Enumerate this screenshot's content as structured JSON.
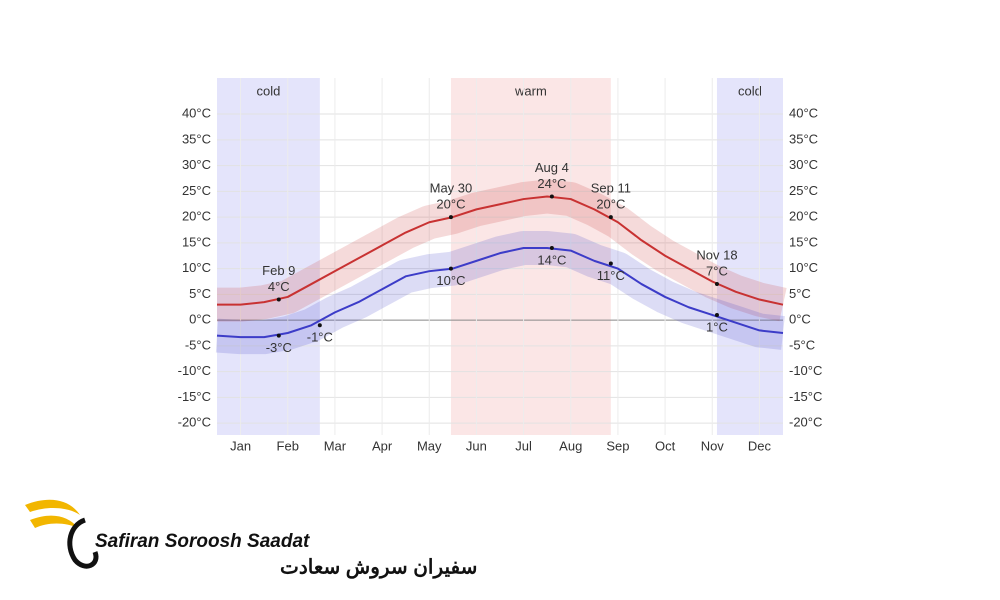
{
  "chart_data": {
    "type": "line",
    "x": [
      0,
      0.5,
      1,
      1.5,
      2,
      2.5,
      3,
      3.5,
      4,
      4.5,
      5,
      5.5,
      6,
      6.5,
      7,
      7.5,
      8,
      8.5,
      9,
      9.5,
      10,
      10.5,
      11,
      11.5,
      12
    ],
    "xlim": [
      0,
      12
    ],
    "xticks": [
      {
        "value": 0.5,
        "label": "Jan"
      },
      {
        "value": 1.5,
        "label": "Feb"
      },
      {
        "value": 2.5,
        "label": "Mar"
      },
      {
        "value": 3.5,
        "label": "Apr"
      },
      {
        "value": 4.5,
        "label": "May"
      },
      {
        "value": 5.5,
        "label": "Jun"
      },
      {
        "value": 6.5,
        "label": "Jul"
      },
      {
        "value": 7.5,
        "label": "Aug"
      },
      {
        "value": 8.5,
        "label": "Sep"
      },
      {
        "value": 9.5,
        "label": "Oct"
      },
      {
        "value": 10.5,
        "label": "Nov"
      },
      {
        "value": 11.5,
        "label": "Dec"
      }
    ],
    "ylim": [
      -22.3,
      47
    ],
    "yticks": [
      {
        "value": 40,
        "label": "40°C"
      },
      {
        "value": 35,
        "label": "35°C"
      },
      {
        "value": 30,
        "label": "30°C"
      },
      {
        "value": 25,
        "label": "25°C"
      },
      {
        "value": 20,
        "label": "20°C"
      },
      {
        "value": 15,
        "label": "15°C"
      },
      {
        "value": 10,
        "label": "10°C"
      },
      {
        "value": 5,
        "label": "5°C"
      },
      {
        "value": 0,
        "label": "0°C"
      },
      {
        "value": -5,
        "label": "-5°C"
      },
      {
        "value": -10,
        "label": "-10°C"
      },
      {
        "value": -15,
        "label": "-15°C"
      },
      {
        "value": -20,
        "label": "-20°C"
      }
    ],
    "grid": true,
    "series": [
      {
        "color": "#c83232",
        "values": [
          3,
          3,
          3.5,
          4.5,
          7,
          9.5,
          12,
          14.5,
          17,
          19,
          20,
          21.5,
          22.5,
          23.5,
          24,
          23.5,
          21.5,
          19,
          15.5,
          12.5,
          10,
          7.5,
          5.5,
          4,
          3
        ]
      },
      {
        "color": "#3c3cc8",
        "values": [
          -3,
          -3.3,
          -3.3,
          -2.5,
          -1,
          1.5,
          3.5,
          6,
          8.5,
          9.5,
          10,
          11.5,
          13,
          14,
          14,
          13.5,
          11.5,
          10,
          7,
          4.5,
          2.5,
          1,
          -0.5,
          -2,
          -2.5
        ]
      }
    ],
    "bands": [
      {
        "label": "cold",
        "from": 0,
        "to": 2.18,
        "color": "#e4e4fb"
      },
      {
        "label": "warm",
        "from": 4.96,
        "to": 8.35,
        "color": "#fbe6e6"
      },
      {
        "label": "cold",
        "from": 10.6,
        "to": 12,
        "color": "#e4e4fb"
      }
    ],
    "annotations": [
      {
        "date": "Feb 9",
        "x": 1.31,
        "value": 4,
        "label": "4°C",
        "position": "above"
      },
      {
        "x": 1.31,
        "value": -3,
        "label": "-3°C",
        "position": "below"
      },
      {
        "x": 2.18,
        "value": -1,
        "label": "-1°C",
        "position": "below"
      },
      {
        "date": "May 30",
        "x": 4.96,
        "value": 20,
        "label": "20°C",
        "position": "above"
      },
      {
        "x": 4.96,
        "value": 10,
        "label": "10°C",
        "position": "below"
      },
      {
        "date": "Aug 4",
        "x": 7.1,
        "value": 24,
        "label": "24°C",
        "position": "above"
      },
      {
        "x": 7.1,
        "value": 14,
        "label": "14°C",
        "position": "below"
      },
      {
        "date": "Sep 11",
        "x": 8.35,
        "value": 20,
        "label": "20°C",
        "position": "above"
      },
      {
        "x": 8.35,
        "value": 11,
        "label": "11°C",
        "position": "below"
      },
      {
        "date": "Nov 18",
        "x": 10.6,
        "value": 7,
        "label": "7°C",
        "position": "above"
      },
      {
        "x": 10.6,
        "value": 1,
        "label": "1°C",
        "position": "below"
      }
    ]
  },
  "logo": {
    "name": "Safiran Soroosh Saadat",
    "name_fa": "سفیران سروش سعادت"
  }
}
